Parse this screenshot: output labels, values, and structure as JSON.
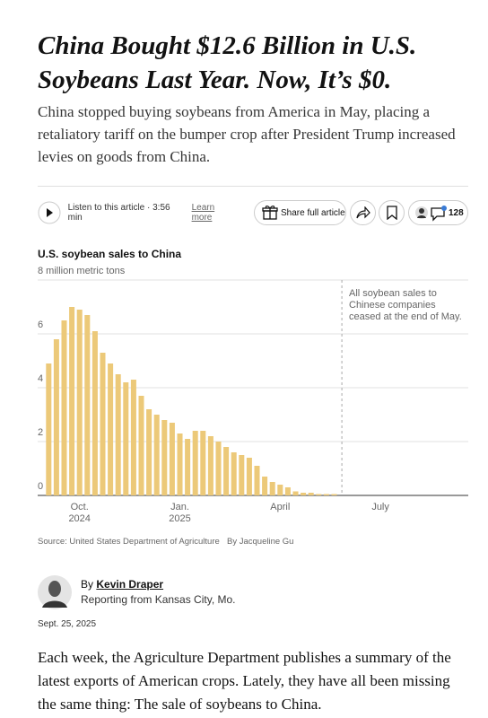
{
  "header": {
    "title": "China Bought $12.6 Billion in U.S. Soybeans Last Year. Now, It’s $0.",
    "summary": "China stopped buying soybeans from America in May, placing a retaliatory tariff on the bumper crop after President Trump increased levies on goods from China."
  },
  "toolbar": {
    "listen": "Listen to this article · 3:56 min",
    "learn_more": "Learn more",
    "share": "Share full article",
    "comments": 128
  },
  "chart_data": {
    "type": "bar",
    "title": "U.S. soybean sales to China",
    "categories": [
      null,
      null,
      null,
      null,
      "Oct. 2024",
      null,
      null,
      null,
      null,
      null,
      null,
      null,
      null,
      null,
      null,
      null,
      null,
      "Jan. 2025",
      null,
      null,
      null,
      null,
      null,
      null,
      null,
      null,
      null,
      null,
      null,
      null,
      "April",
      null,
      null,
      null,
      null,
      null,
      null,
      null,
      null,
      null,
      null,
      null,
      null,
      "July",
      null,
      null,
      null,
      null,
      null,
      null,
      null,
      null,
      null,
      null
    ],
    "values": [
      4.9,
      5.8,
      6.5,
      7.0,
      6.9,
      6.7,
      6.1,
      5.3,
      4.9,
      4.5,
      4.2,
      4.3,
      3.7,
      3.2,
      3.0,
      2.8,
      2.7,
      2.3,
      2.1,
      2.4,
      2.4,
      2.2,
      2.0,
      1.8,
      1.6,
      1.5,
      1.4,
      1.1,
      0.7,
      0.5,
      0.4,
      0.3,
      0.15,
      0.1,
      0.1,
      0.05,
      0.05,
      0.05,
      null,
      null,
      null,
      null,
      null,
      null,
      null,
      null,
      null,
      null,
      null,
      null,
      null,
      null,
      null,
      null
    ],
    "color": "#ecc979",
    "ylim": [
      0,
      8
    ],
    "yticks": [
      0,
      2,
      4,
      6,
      {
        "value": 8,
        "label": "8 million metric tons"
      }
    ],
    "grid": true,
    "annotation": "All soybean sales to Chinese companies ceased at the end of May.",
    "source": "Source: United States Department of Agriculture",
    "credit": "By Jacqueline Gu"
  },
  "byline": {
    "prefix": "By",
    "author": "Kevin Draper",
    "location": "Reporting from Kansas City, Mo.",
    "date": "Sept. 25, 2025"
  },
  "body": {
    "paragraphs": [
      "Each week, the Agriculture Department publishes a summary of the latest exports of American crops. Lately, they have all been missing the same thing: The sale of soybeans to China."
    ]
  }
}
